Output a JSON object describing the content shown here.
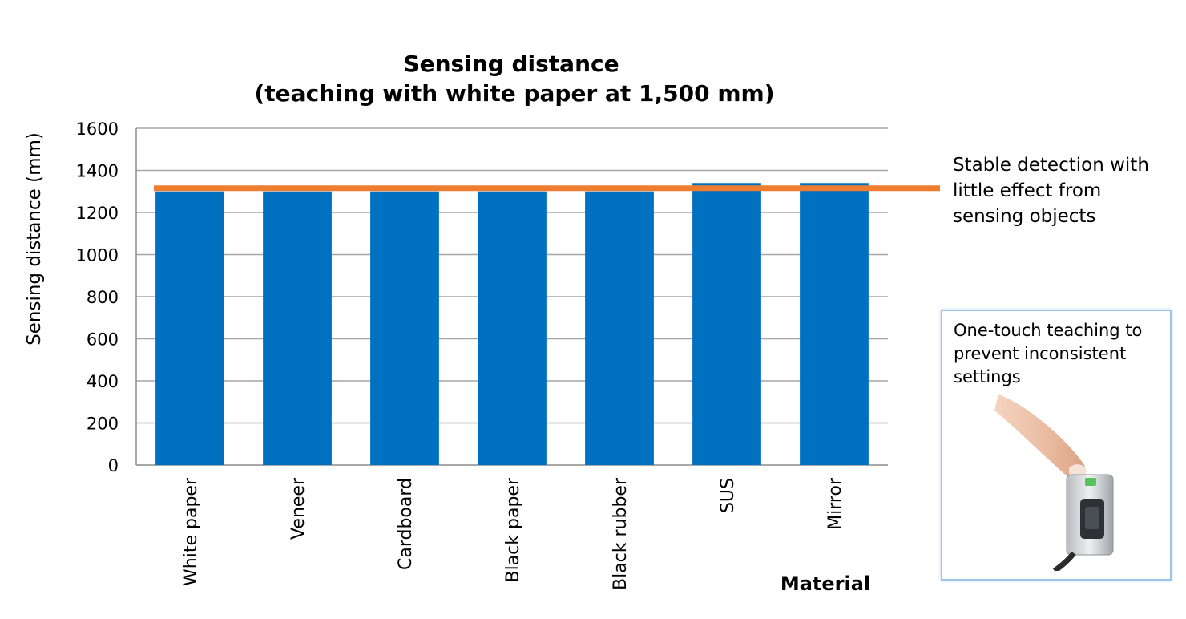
{
  "chart_data": {
    "type": "bar",
    "title": [
      "Sensing distance",
      "(teaching with white paper at 1,500 mm)"
    ],
    "ylabel": "Sensing distance (mm)",
    "xlabel": "Material",
    "categories": [
      "White paper",
      "Veneer",
      "Cardboard",
      "Black paper",
      "Black rubber",
      "SUS",
      "Mirror"
    ],
    "values": [
      1300,
      1300,
      1300,
      1300,
      1300,
      1340,
      1340
    ],
    "ylim": [
      0,
      1600
    ],
    "yticks": [
      0,
      200,
      400,
      600,
      800,
      1000,
      1200,
      1400,
      1600
    ],
    "grid": true,
    "bar_color": "#0070c0",
    "reference_line": {
      "value": 1300,
      "color": "#ed7d31"
    }
  },
  "annotation": {
    "lines": [
      "Stable detection with",
      "little effect from",
      "sensing objects"
    ]
  },
  "callout": {
    "lines": [
      "One-touch teaching to",
      "prevent inconsistent",
      "settings"
    ],
    "image": "finger-pressing-sensor-photo"
  }
}
